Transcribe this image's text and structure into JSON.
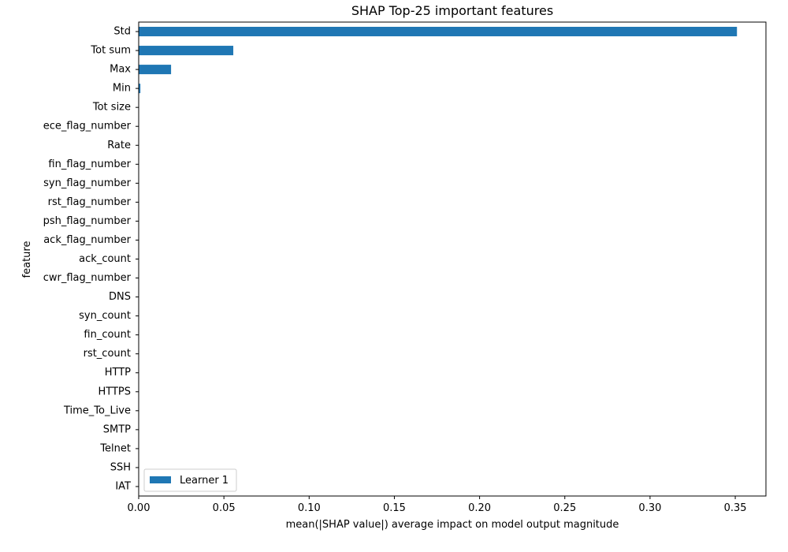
{
  "chart_data": {
    "type": "bar",
    "orientation": "horizontal",
    "title": "SHAP Top-25 important features",
    "xlabel": "mean(|SHAP value|) average impact on model output magnitude",
    "ylabel": "feature",
    "xlim": [
      0,
      0.368
    ],
    "xticks": [
      0.0,
      0.05,
      0.1,
      0.15,
      0.2,
      0.25,
      0.3,
      0.35
    ],
    "xtick_labels": [
      "0.00",
      "0.05",
      "0.10",
      "0.15",
      "0.20",
      "0.25",
      "0.30",
      "0.35"
    ],
    "grid": false,
    "legend_position": "bottom-left",
    "categories": [
      "Std",
      "Tot sum",
      "Max",
      "Min",
      "Tot size",
      "ece_flag_number",
      "Rate",
      "fin_flag_number",
      "syn_flag_number",
      "rst_flag_number",
      "psh_flag_number",
      "ack_flag_number",
      "ack_count",
      "cwr_flag_number",
      "DNS",
      "syn_count",
      "fin_count",
      "rst_count",
      "HTTP",
      "HTTPS",
      "Time_To_Live",
      "SMTP",
      "Telnet",
      "SSH",
      "IAT"
    ],
    "series": [
      {
        "name": "Learner 1",
        "color": "#1f77b4",
        "values": [
          0.351,
          0.0555,
          0.019,
          0.001,
          0.0001,
          0.0,
          0.0,
          0.0,
          0.0,
          0.0,
          0.0,
          0.0,
          0.0,
          0.0,
          0.0,
          0.0,
          0.0,
          0.0,
          0.0,
          0.0,
          0.0,
          0.0,
          0.0,
          0.0,
          0.0
        ]
      }
    ]
  }
}
